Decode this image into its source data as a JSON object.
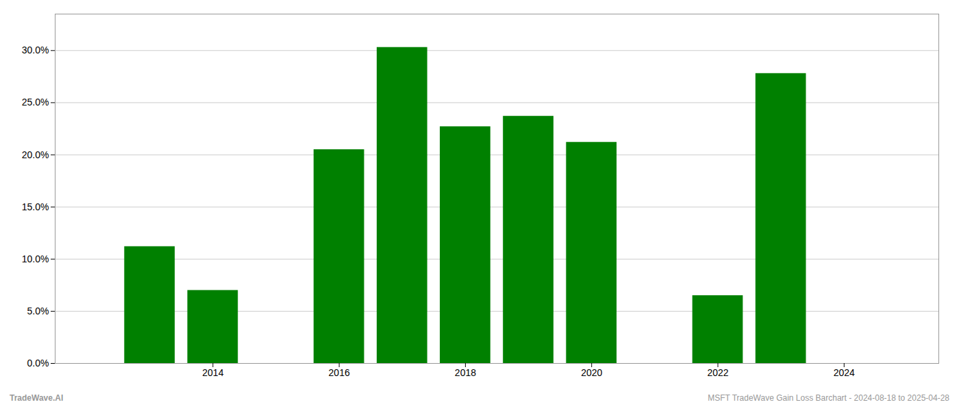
{
  "chart_data": {
    "type": "bar",
    "x": [
      2013,
      2014,
      2016,
      2017,
      2018,
      2019,
      2020,
      2022,
      2023
    ],
    "values": [
      0.112,
      0.07,
      0.205,
      0.303,
      0.227,
      0.237,
      0.212,
      0.065,
      0.278
    ],
    "color": "#008000",
    "xlim": [
      2011.5,
      2025.5
    ],
    "xticks": [
      2014,
      2016,
      2018,
      2020,
      2022,
      2024
    ],
    "ylim": [
      0,
      0.335
    ],
    "yticks": [
      {
        "value": 0.0,
        "label": "0.0%"
      },
      {
        "value": 0.05,
        "label": "5.0%"
      },
      {
        "value": 0.1,
        "label": "10.0%"
      },
      {
        "value": 0.15,
        "label": "15.0%"
      },
      {
        "value": 0.2,
        "label": "20.0%"
      },
      {
        "value": 0.25,
        "label": "25.0%"
      },
      {
        "value": 0.3,
        "label": "30.0%"
      }
    ],
    "grid": true,
    "annotations": [
      "TradeWave.AI",
      "MSFT TradeWave Gain Loss Barchart - 2024-08-18 to 2025-04-28"
    ]
  }
}
